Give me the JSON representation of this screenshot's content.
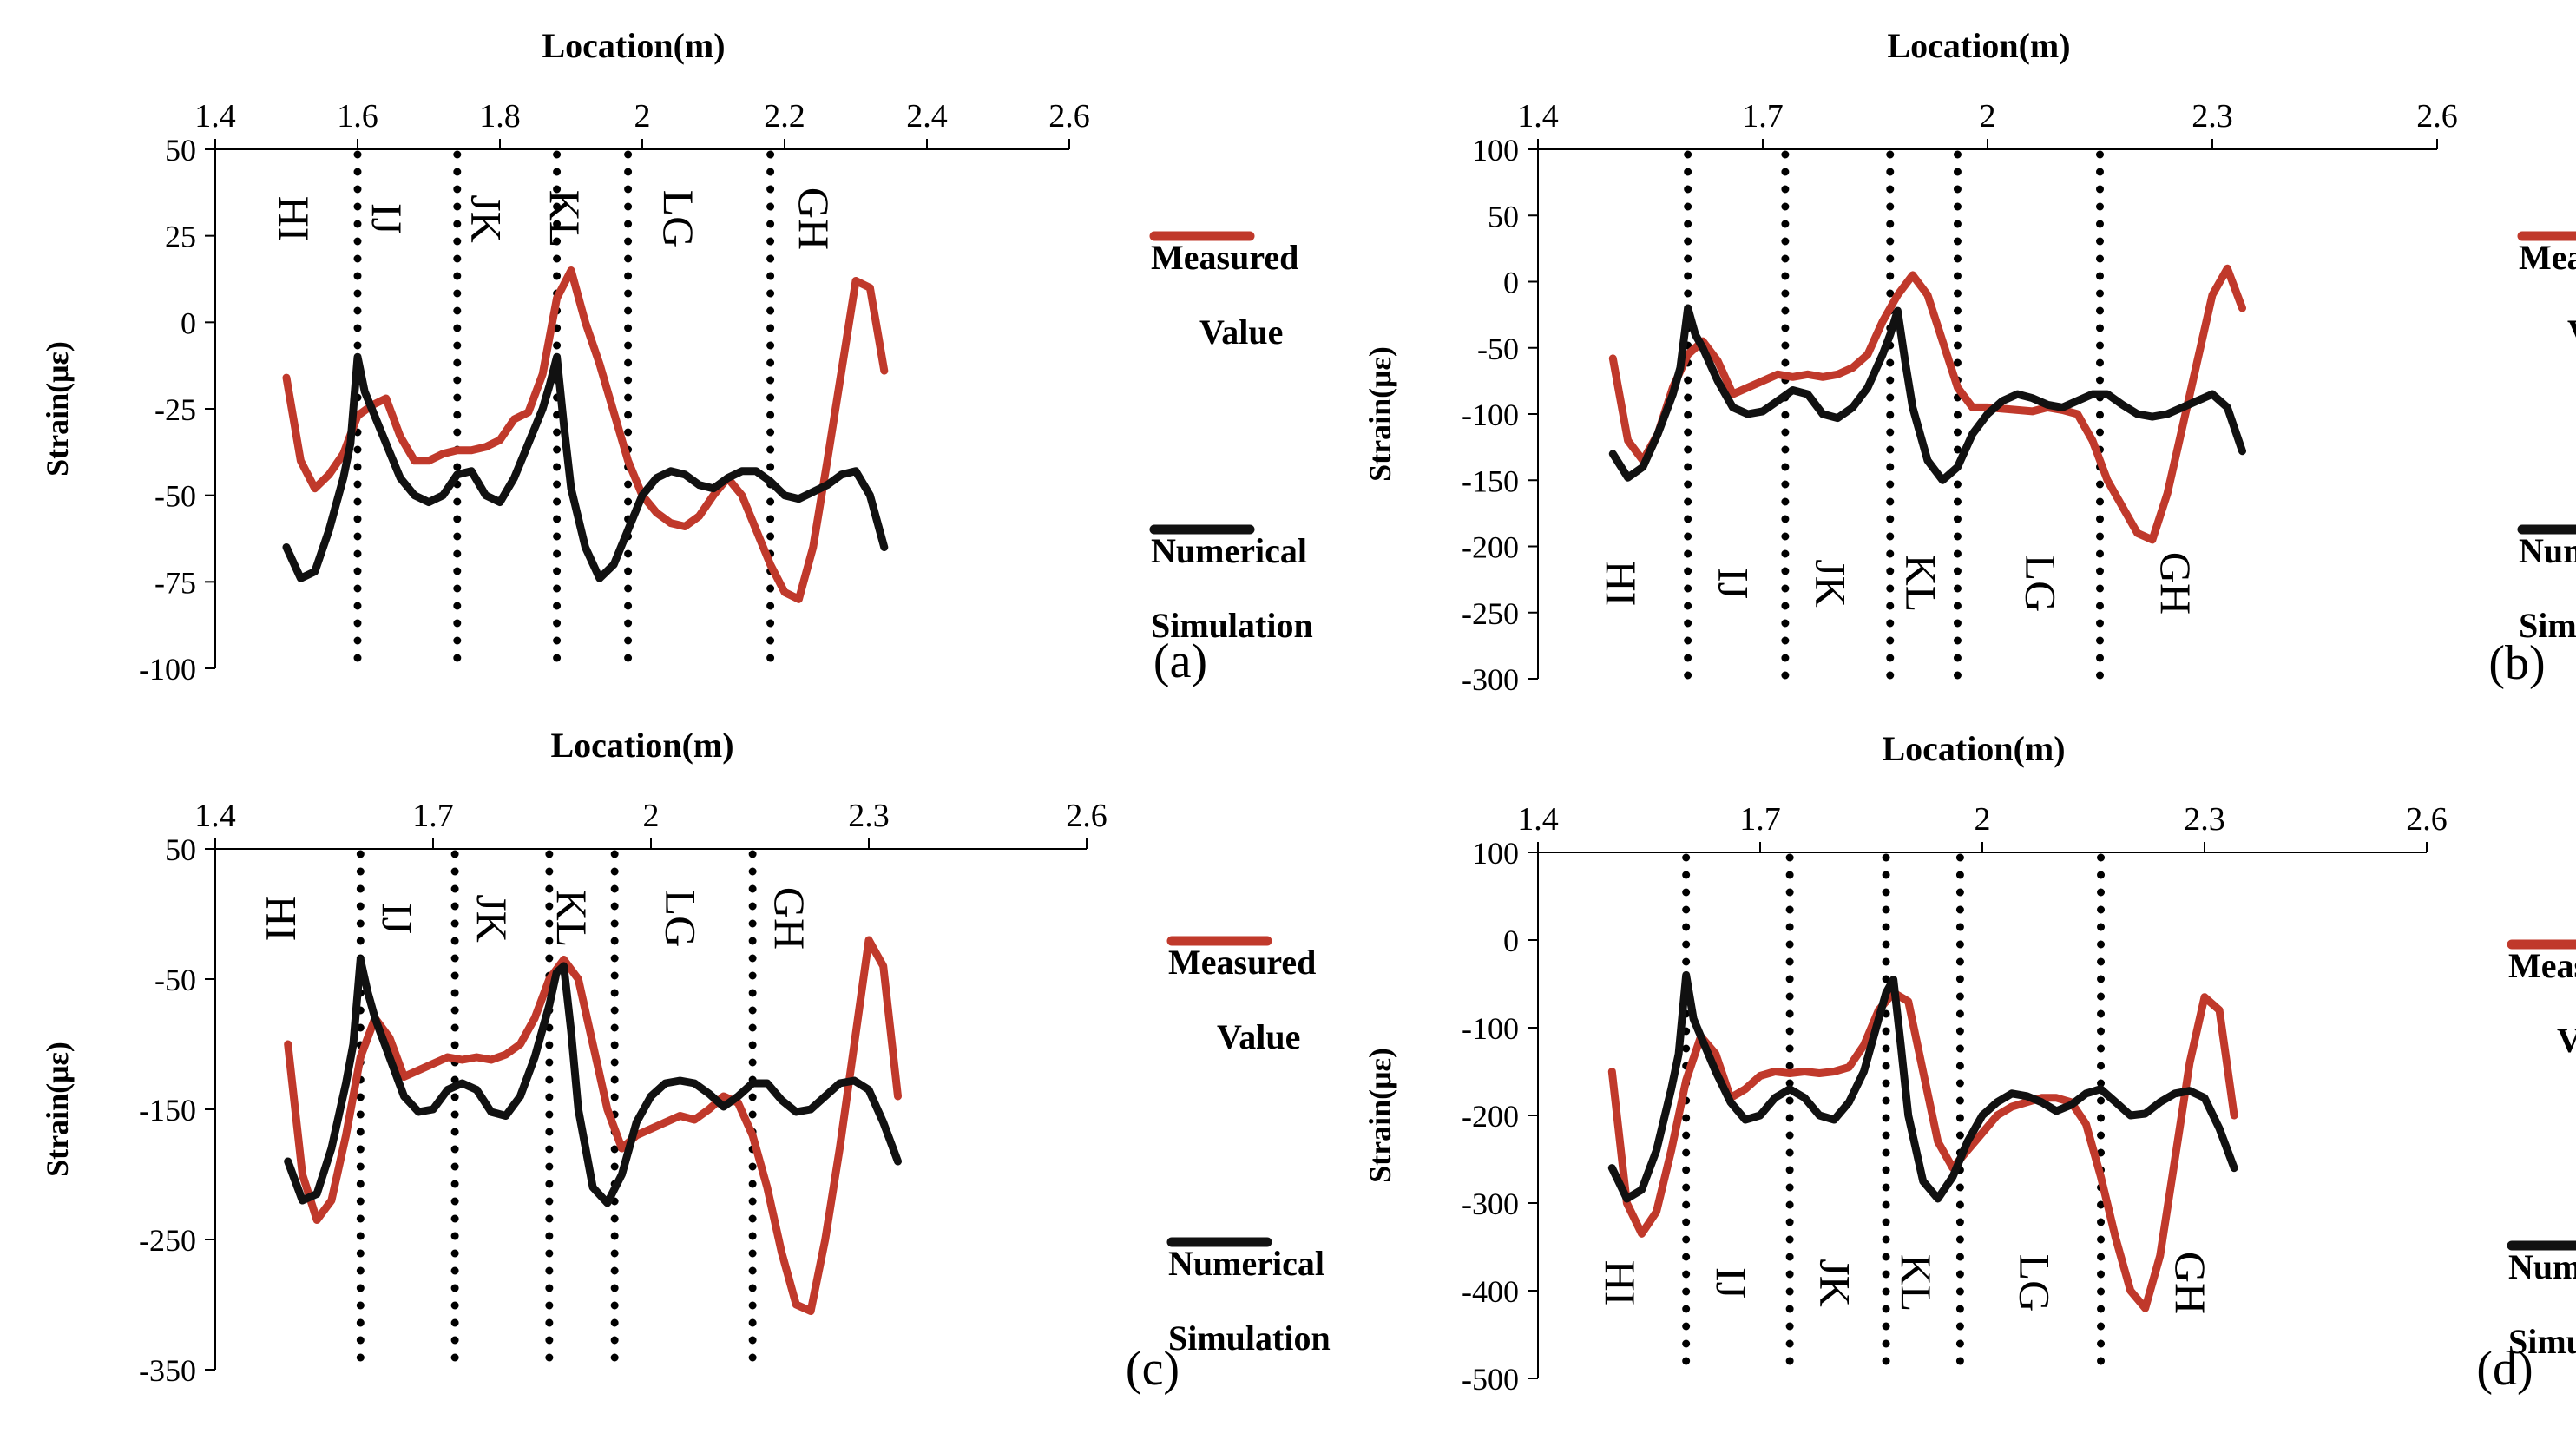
{
  "colors": {
    "measured": "#c0392b",
    "numerical": "#111111",
    "axis": "#000000"
  },
  "chart_data": [
    {
      "type": "line",
      "panel_label": "(a)",
      "xlabel": "Location(m)",
      "ylabel": "Strain(με)",
      "x_ticks": [
        "1.4",
        "1.6",
        "1.8",
        "2",
        "2.2",
        "2.4",
        "2.6"
      ],
      "x_tick_values": [
        1.4,
        1.6,
        1.8,
        2.0,
        2.2,
        2.4,
        2.6
      ],
      "xlim": [
        1.4,
        2.6
      ],
      "y_ticks": [
        "50",
        "25",
        "0",
        "-25",
        "-50",
        "-75",
        "-100"
      ],
      "y_tick_values": [
        50,
        25,
        0,
        -25,
        -50,
        -75,
        -100
      ],
      "ylim": [
        -100,
        50
      ],
      "legend": {
        "measured_line1": "Measured",
        "measured_line2": "Value",
        "numerical_line1": "Numerical",
        "numerical_line2": "Simulation"
      },
      "joints": [
        {
          "label": "HI",
          "x": 1.51
        },
        {
          "label": "IJ",
          "x": 1.64
        },
        {
          "label": "JK",
          "x": 1.78
        },
        {
          "label": "KL",
          "x": 1.89
        },
        {
          "label": "LG",
          "x": 2.05
        },
        {
          "label": "GH",
          "x": 2.24
        }
      ],
      "dividers_x": [
        1.6,
        1.74,
        1.88,
        1.98,
        2.18
      ],
      "series": [
        {
          "name": "Measured Value",
          "x": [
            1.5,
            1.52,
            1.54,
            1.56,
            1.58,
            1.6,
            1.62,
            1.64,
            1.66,
            1.68,
            1.7,
            1.72,
            1.74,
            1.76,
            1.78,
            1.8,
            1.82,
            1.84,
            1.86,
            1.88,
            1.9,
            1.92,
            1.94,
            1.96,
            1.98,
            2.0,
            2.02,
            2.04,
            2.06,
            2.08,
            2.1,
            2.12,
            2.14,
            2.16,
            2.18,
            2.2,
            2.22,
            2.24,
            2.26,
            2.28,
            2.3,
            2.32,
            2.34
          ],
          "y": [
            -16,
            -40,
            -48,
            -44,
            -38,
            -27,
            -24,
            -22,
            -33,
            -40,
            -40,
            -38,
            -37,
            -37,
            -36,
            -34,
            -28,
            -26,
            -15,
            7,
            15,
            0,
            -12,
            -26,
            -40,
            -50,
            -55,
            -58,
            -59,
            -56,
            -50,
            -45,
            -50,
            -60,
            -70,
            -78,
            -80,
            -65,
            -40,
            -14,
            12,
            10,
            -14
          ]
        },
        {
          "name": "Numerical Simulation",
          "x": [
            1.5,
            1.52,
            1.54,
            1.56,
            1.58,
            1.59,
            1.6,
            1.61,
            1.62,
            1.64,
            1.66,
            1.68,
            1.7,
            1.72,
            1.74,
            1.76,
            1.78,
            1.8,
            1.82,
            1.84,
            1.86,
            1.87,
            1.88,
            1.89,
            1.9,
            1.92,
            1.94,
            1.96,
            1.98,
            2.0,
            2.02,
            2.04,
            2.06,
            2.08,
            2.1,
            2.12,
            2.14,
            2.16,
            2.18,
            2.2,
            2.22,
            2.24,
            2.26,
            2.28,
            2.3,
            2.32,
            2.34
          ],
          "y": [
            -65,
            -74,
            -72,
            -60,
            -45,
            -35,
            -10,
            -20,
            -25,
            -35,
            -45,
            -50,
            -52,
            -50,
            -44,
            -43,
            -50,
            -52,
            -45,
            -35,
            -25,
            -18,
            -10,
            -30,
            -48,
            -65,
            -74,
            -70,
            -60,
            -50,
            -45,
            -43,
            -44,
            -47,
            -48,
            -45,
            -43,
            -43,
            -46,
            -50,
            -51,
            -49,
            -47,
            -44,
            -43,
            -50,
            -65
          ]
        }
      ]
    },
    {
      "type": "line",
      "panel_label": "(b)",
      "xlabel": "Location(m)",
      "ylabel": "Strain(με)",
      "x_ticks": [
        "1.4",
        "1.7",
        "2",
        "2.3",
        "2.6"
      ],
      "x_tick_values": [
        1.4,
        1.7,
        2.0,
        2.3,
        2.6
      ],
      "xlim": [
        1.4,
        2.6
      ],
      "y_ticks": [
        "100",
        "50",
        "0",
        "-50",
        "-100",
        "-150",
        "-200",
        "-250",
        "-300"
      ],
      "y_tick_values": [
        100,
        50,
        0,
        -50,
        -100,
        -150,
        -200,
        -250,
        -300
      ],
      "ylim": [
        -300,
        100
      ],
      "legend": {
        "measured_line1": "Measured",
        "measured_line2": "Value",
        "numerical_line1": "Numerical",
        "numerical_line2": "Simulation"
      },
      "joints": [
        {
          "label": "HI",
          "x": 1.51
        },
        {
          "label": "IJ",
          "x": 1.66
        },
        {
          "label": "JK",
          "x": 1.79
        },
        {
          "label": "KL",
          "x": 1.91
        },
        {
          "label": "LG",
          "x": 2.07
        },
        {
          "label": "GH",
          "x": 2.25
        }
      ],
      "dividers_x": [
        1.6,
        1.73,
        1.87,
        1.96,
        2.15
      ],
      "series": [
        {
          "name": "Measured Value",
          "x": [
            1.5,
            1.52,
            1.54,
            1.56,
            1.58,
            1.6,
            1.62,
            1.64,
            1.66,
            1.68,
            1.7,
            1.72,
            1.74,
            1.76,
            1.78,
            1.8,
            1.82,
            1.84,
            1.86,
            1.88,
            1.9,
            1.92,
            1.94,
            1.96,
            1.98,
            2.0,
            2.02,
            2.04,
            2.06,
            2.08,
            2.1,
            2.12,
            2.14,
            2.16,
            2.18,
            2.2,
            2.22,
            2.24,
            2.26,
            2.28,
            2.3,
            2.32,
            2.34
          ],
          "y": [
            -58,
            -120,
            -135,
            -115,
            -80,
            -55,
            -45,
            -60,
            -85,
            -80,
            -75,
            -70,
            -72,
            -70,
            -72,
            -70,
            -65,
            -55,
            -30,
            -10,
            5,
            -10,
            -45,
            -80,
            -95,
            -95,
            -96,
            -97,
            -98,
            -95,
            -97,
            -100,
            -120,
            -150,
            -170,
            -190,
            -195,
            -160,
            -110,
            -60,
            -10,
            10,
            -20
          ]
        },
        {
          "name": "Numerical Simulation",
          "x": [
            1.5,
            1.52,
            1.54,
            1.56,
            1.58,
            1.59,
            1.6,
            1.61,
            1.62,
            1.64,
            1.66,
            1.68,
            1.7,
            1.72,
            1.74,
            1.76,
            1.78,
            1.8,
            1.82,
            1.84,
            1.86,
            1.87,
            1.88,
            1.89,
            1.9,
            1.92,
            1.94,
            1.96,
            1.98,
            2.0,
            2.02,
            2.04,
            2.06,
            2.08,
            2.1,
            2.12,
            2.14,
            2.16,
            2.18,
            2.2,
            2.22,
            2.24,
            2.26,
            2.28,
            2.3,
            2.32,
            2.34
          ],
          "y": [
            -130,
            -148,
            -140,
            -115,
            -85,
            -65,
            -20,
            -40,
            -50,
            -75,
            -95,
            -100,
            -98,
            -90,
            -82,
            -85,
            -100,
            -103,
            -95,
            -80,
            -55,
            -40,
            -22,
            -60,
            -95,
            -135,
            -150,
            -140,
            -115,
            -100,
            -90,
            -85,
            -88,
            -93,
            -95,
            -90,
            -85,
            -85,
            -93,
            -100,
            -102,
            -100,
            -95,
            -90,
            -85,
            -95,
            -128
          ]
        }
      ]
    },
    {
      "type": "line",
      "panel_label": "(c)",
      "xlabel": "Location(m)",
      "ylabel": "Strain(με)",
      "x_ticks": [
        "1.4",
        "1.7",
        "2",
        "2.3",
        "2.6"
      ],
      "x_tick_values": [
        1.4,
        1.7,
        2.0,
        2.3,
        2.6
      ],
      "xlim": [
        1.4,
        2.6
      ],
      "y_ticks": [
        "50",
        "-50",
        "-150",
        "-250",
        "-350"
      ],
      "y_tick_values": [
        50,
        -50,
        -150,
        -250,
        -350
      ],
      "ylim": [
        -350,
        50
      ],
      "legend": {
        "measured_line1": "Measured",
        "measured_line2": "Value",
        "numerical_line1": "Numerical",
        "numerical_line2": "Simulation"
      },
      "joints": [
        {
          "label": "HI",
          "x": 1.49
        },
        {
          "label": "IJ",
          "x": 1.65
        },
        {
          "label": "JK",
          "x": 1.78
        },
        {
          "label": "KL",
          "x": 1.89
        },
        {
          "label": "LG",
          "x": 2.04
        },
        {
          "label": "GH",
          "x": 2.19
        }
      ],
      "dividers_x": [
        1.6,
        1.73,
        1.86,
        1.95,
        2.14
      ],
      "series": [
        {
          "name": "Measured Value",
          "x": [
            1.5,
            1.52,
            1.54,
            1.56,
            1.58,
            1.6,
            1.62,
            1.64,
            1.66,
            1.68,
            1.7,
            1.72,
            1.74,
            1.76,
            1.78,
            1.8,
            1.82,
            1.84,
            1.86,
            1.88,
            1.9,
            1.92,
            1.94,
            1.96,
            1.98,
            2.0,
            2.02,
            2.04,
            2.06,
            2.08,
            2.1,
            2.12,
            2.14,
            2.16,
            2.18,
            2.2,
            2.22,
            2.24,
            2.26,
            2.28,
            2.3,
            2.32,
            2.34
          ],
          "y": [
            -100,
            -200,
            -235,
            -220,
            -170,
            -110,
            -80,
            -95,
            -125,
            -120,
            -115,
            -110,
            -112,
            -110,
            -112,
            -108,
            -100,
            -80,
            -50,
            -35,
            -50,
            -100,
            -150,
            -180,
            -170,
            -165,
            -160,
            -155,
            -158,
            -150,
            -140,
            -145,
            -170,
            -210,
            -260,
            -300,
            -305,
            -250,
            -180,
            -100,
            -20,
            -40,
            -140
          ]
        },
        {
          "name": "Numerical Simulation",
          "x": [
            1.5,
            1.52,
            1.54,
            1.56,
            1.58,
            1.59,
            1.6,
            1.61,
            1.62,
            1.64,
            1.66,
            1.68,
            1.7,
            1.72,
            1.74,
            1.76,
            1.78,
            1.8,
            1.82,
            1.84,
            1.86,
            1.87,
            1.88,
            1.89,
            1.9,
            1.92,
            1.94,
            1.96,
            1.98,
            2.0,
            2.02,
            2.04,
            2.06,
            2.08,
            2.1,
            2.12,
            2.14,
            2.16,
            2.18,
            2.2,
            2.22,
            2.24,
            2.26,
            2.28,
            2.3,
            2.32,
            2.34
          ],
          "y": [
            -190,
            -220,
            -215,
            -180,
            -130,
            -100,
            -35,
            -60,
            -80,
            -110,
            -140,
            -152,
            -150,
            -135,
            -130,
            -135,
            -152,
            -155,
            -140,
            -110,
            -70,
            -45,
            -40,
            -90,
            -150,
            -210,
            -222,
            -200,
            -160,
            -140,
            -130,
            -128,
            -130,
            -138,
            -148,
            -140,
            -130,
            -130,
            -143,
            -152,
            -150,
            -140,
            -130,
            -128,
            -135,
            -160,
            -190
          ]
        }
      ]
    },
    {
      "type": "line",
      "panel_label": "(d)",
      "xlabel": "Location(m)",
      "ylabel": "Strain(με)",
      "x_ticks": [
        "1.4",
        "1.7",
        "2",
        "2.3",
        "2.6"
      ],
      "x_tick_values": [
        1.4,
        1.7,
        2.0,
        2.3,
        2.6
      ],
      "xlim": [
        1.4,
        2.6
      ],
      "y_ticks": [
        "100",
        "0",
        "-100",
        "-200",
        "-300",
        "-400",
        "-500"
      ],
      "y_tick_values": [
        100,
        0,
        -100,
        -200,
        -300,
        -400,
        -500
      ],
      "ylim": [
        -500,
        100
      ],
      "legend": {
        "measured_line1": "Measured",
        "measured_line2": "Value",
        "numerical_line1": "Numerical",
        "numerical_line2": "Simulation"
      },
      "joints": [
        {
          "label": "HI",
          "x": 1.51
        },
        {
          "label": "IJ",
          "x": 1.66
        },
        {
          "label": "JK",
          "x": 1.8
        },
        {
          "label": "KL",
          "x": 1.91
        },
        {
          "label": "LG",
          "x": 2.07
        },
        {
          "label": "GH",
          "x": 2.28
        }
      ],
      "dividers_x": [
        1.6,
        1.74,
        1.87,
        1.97,
        2.16
      ],
      "series": [
        {
          "name": "Measured Value",
          "x": [
            1.5,
            1.52,
            1.54,
            1.56,
            1.58,
            1.6,
            1.62,
            1.64,
            1.66,
            1.68,
            1.7,
            1.72,
            1.74,
            1.76,
            1.78,
            1.8,
            1.82,
            1.84,
            1.86,
            1.88,
            1.9,
            1.92,
            1.94,
            1.96,
            1.98,
            2.0,
            2.02,
            2.04,
            2.06,
            2.08,
            2.1,
            2.12,
            2.14,
            2.16,
            2.18,
            2.2,
            2.22,
            2.24,
            2.26,
            2.28,
            2.3,
            2.32,
            2.34
          ],
          "y": [
            -150,
            -300,
            -335,
            -310,
            -240,
            -160,
            -110,
            -130,
            -180,
            -170,
            -155,
            -150,
            -152,
            -150,
            -152,
            -150,
            -145,
            -120,
            -80,
            -60,
            -70,
            -150,
            -230,
            -260,
            -240,
            -220,
            -200,
            -190,
            -185,
            -180,
            -180,
            -185,
            -210,
            -270,
            -340,
            -400,
            -420,
            -360,
            -250,
            -140,
            -65,
            -80,
            -200
          ]
        },
        {
          "name": "Numerical Simulation",
          "x": [
            1.5,
            1.52,
            1.54,
            1.56,
            1.58,
            1.59,
            1.6,
            1.61,
            1.62,
            1.64,
            1.66,
            1.68,
            1.7,
            1.72,
            1.74,
            1.76,
            1.78,
            1.8,
            1.82,
            1.84,
            1.86,
            1.87,
            1.88,
            1.89,
            1.9,
            1.92,
            1.94,
            1.96,
            1.98,
            2.0,
            2.02,
            2.04,
            2.06,
            2.08,
            2.1,
            2.12,
            2.14,
            2.16,
            2.18,
            2.2,
            2.22,
            2.24,
            2.26,
            2.28,
            2.3,
            2.32,
            2.34
          ],
          "y": [
            -260,
            -295,
            -285,
            -240,
            -170,
            -130,
            -40,
            -90,
            -110,
            -150,
            -185,
            -205,
            -200,
            -180,
            -170,
            -180,
            -200,
            -205,
            -185,
            -150,
            -90,
            -60,
            -45,
            -120,
            -200,
            -275,
            -295,
            -270,
            -230,
            -200,
            -185,
            -175,
            -178,
            -185,
            -195,
            -188,
            -175,
            -170,
            -185,
            -200,
            -198,
            -185,
            -175,
            -172,
            -180,
            -215,
            -260
          ]
        }
      ]
    }
  ]
}
